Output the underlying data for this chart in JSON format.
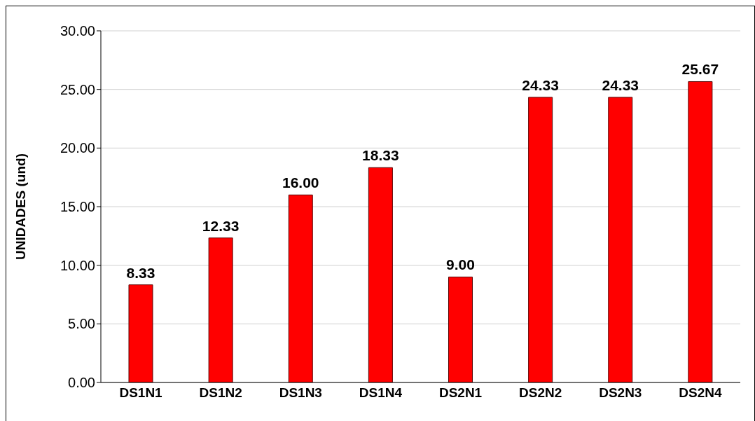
{
  "chart_data": {
    "type": "bar",
    "ylabel": "UNIDADES (und)",
    "categories": [
      "DS1N1",
      "DS1N2",
      "DS1N3",
      "DS1N4",
      "DS2N1",
      "DS2N2",
      "DS2N3",
      "DS2N4"
    ],
    "values": [
      8.33,
      12.33,
      16.0,
      18.33,
      9.0,
      24.33,
      24.33,
      25.67
    ],
    "value_labels": [
      "8.33",
      "12.33",
      "16.00",
      "18.33",
      "9.00",
      "24.33",
      "24.33",
      "25.67"
    ],
    "color": "#ff0000",
    "ylim": [
      0,
      30
    ],
    "yticks": [
      {
        "value": 0,
        "label": "0.00"
      },
      {
        "value": 5,
        "label": "5.00"
      },
      {
        "value": 10,
        "label": "10.00"
      },
      {
        "value": 15,
        "label": "15.00"
      },
      {
        "value": 20,
        "label": "20.00"
      },
      {
        "value": 25,
        "label": "25.00"
      },
      {
        "value": 30,
        "label": "30.00"
      }
    ],
    "grid": "y",
    "legend": false
  }
}
